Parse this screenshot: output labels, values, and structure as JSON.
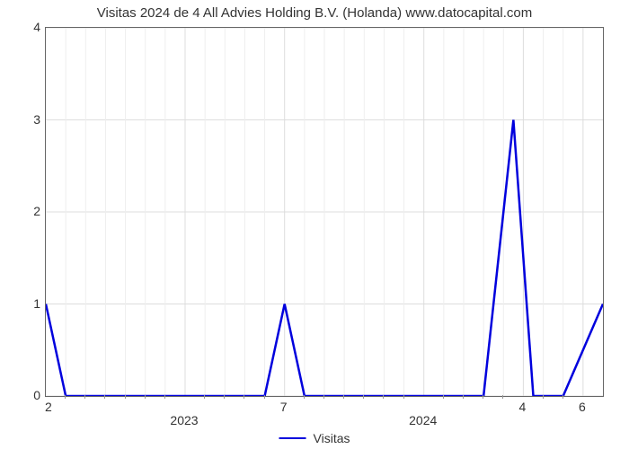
{
  "chart": {
    "type": "line",
    "title": "Visitas 2024 de 4 All Advies Holding B.V. (Holanda) www.datocapital.com",
    "title_fontsize": 15,
    "title_color": "#333333",
    "background_color": "#ffffff",
    "plot_border_color": "#666666",
    "grid_color": "#dddddd",
    "grid_minor_color": "#eeeeee",
    "line_color": "#0000dd",
    "line_width": 2.5,
    "ylim": [
      0,
      4
    ],
    "yticks": [
      0,
      1,
      2,
      3,
      4
    ],
    "xlim": [
      0,
      28
    ],
    "x_major_ticks": [
      {
        "pos": 7,
        "label": "2023"
      },
      {
        "pos": 12,
        "label": "7"
      },
      {
        "pos": 19,
        "label": "2024"
      },
      {
        "pos": 24,
        "label": "4"
      },
      {
        "pos": 27,
        "label": "6"
      }
    ],
    "x_start_label": "2",
    "x_minor_positions": [
      1,
      2,
      3,
      4,
      5,
      6,
      8,
      9,
      10,
      11,
      13,
      14,
      15,
      16,
      17,
      18,
      20,
      21,
      22,
      23,
      25,
      26
    ],
    "series": {
      "name": "Visitas",
      "points": [
        [
          0,
          1
        ],
        [
          1,
          0
        ],
        [
          11,
          0
        ],
        [
          12,
          1
        ],
        [
          13,
          0
        ],
        [
          22,
          0
        ],
        [
          23.5,
          3
        ],
        [
          24.5,
          0
        ],
        [
          26,
          0
        ],
        [
          28,
          1
        ]
      ]
    },
    "legend_label": "Visitas"
  }
}
